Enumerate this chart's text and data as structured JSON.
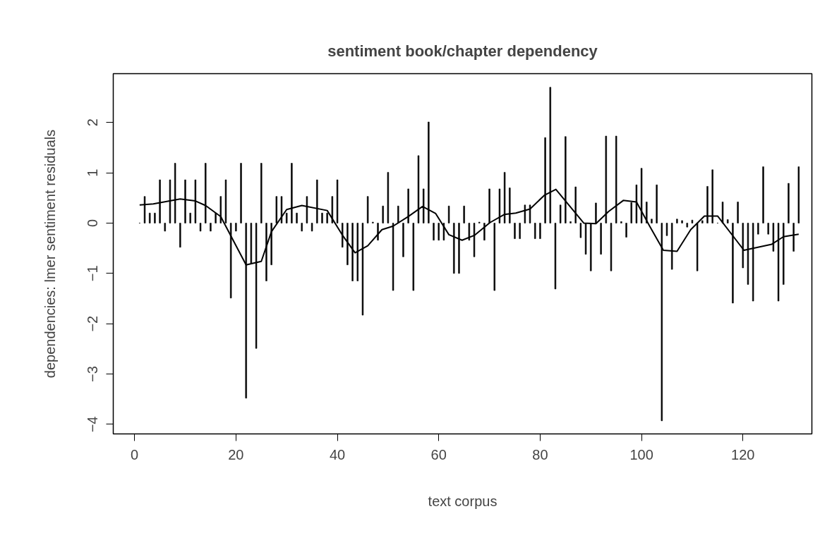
{
  "chart_data": {
    "type": "bar",
    "title": "sentiment book/chapter dependency",
    "xlabel": "text corpus",
    "ylabel": "dependencies: lmer sentiment residuals",
    "xlim": [
      -4.2,
      133.6
    ],
    "ylim": [
      -4.19,
      2.97
    ],
    "xticks": [
      0,
      20,
      40,
      60,
      80,
      100,
      120
    ],
    "yticks": [
      -4,
      -3,
      -2,
      -1,
      0,
      1,
      2
    ],
    "grid": false,
    "series": [
      {
        "color": "#000000",
        "x": [
          1,
          2,
          3,
          4,
          5,
          6,
          7,
          8,
          9,
          10,
          11,
          12,
          13,
          14,
          15,
          16,
          17,
          18,
          19,
          20,
          21,
          22,
          23,
          24,
          25,
          26,
          27,
          28,
          29,
          30,
          31,
          32,
          33,
          34,
          35,
          36,
          37,
          38,
          39,
          40,
          41,
          42,
          43,
          44,
          45,
          46,
          47,
          48,
          49,
          50,
          51,
          52,
          53,
          54,
          55,
          56,
          57,
          58,
          59,
          60,
          61,
          62,
          63,
          64,
          65,
          66,
          67,
          68,
          69,
          70,
          71,
          72,
          73,
          74,
          75,
          76,
          77,
          78,
          79,
          80,
          81,
          82,
          83,
          84,
          85,
          86,
          87,
          88,
          89,
          90,
          91,
          92,
          93,
          94,
          95,
          96,
          97,
          98,
          99,
          100,
          101,
          102,
          103,
          104,
          105,
          106,
          107,
          108,
          109,
          110,
          111,
          112,
          113,
          114,
          115,
          116,
          117,
          118,
          119,
          120,
          121,
          122,
          123,
          124,
          125,
          126,
          127,
          128,
          129,
          130,
          131
        ],
        "values": [
          0.0,
          0.53,
          0.2,
          0.2,
          0.86,
          -0.16,
          0.86,
          1.19,
          -0.48,
          0.86,
          0.2,
          0.86,
          -0.16,
          1.19,
          -0.16,
          0.2,
          0.53,
          0.86,
          -1.49,
          -0.16,
          1.19,
          -3.48,
          -0.8,
          -2.49,
          1.19,
          -1.15,
          -0.83,
          0.53,
          0.53,
          0.2,
          1.19,
          0.2,
          -0.16,
          0.53,
          -0.16,
          0.86,
          0.2,
          0.2,
          0.53,
          0.86,
          -0.48,
          -0.83,
          -1.15,
          -1.15,
          -1.83,
          0.53,
          0.02,
          -0.34,
          0.34,
          1.01,
          -1.34,
          0.34,
          -0.67,
          0.68,
          -1.34,
          1.34,
          0.68,
          2.01,
          -0.34,
          -0.34,
          -0.34,
          0.34,
          -1.0,
          -1.0,
          0.34,
          -0.34,
          -0.67,
          0.02,
          -0.34,
          0.68,
          -1.34,
          0.68,
          1.01,
          0.7,
          -0.31,
          -0.31,
          0.36,
          0.36,
          -0.31,
          -0.31,
          1.7,
          2.7,
          -1.31,
          0.36,
          1.72,
          0.03,
          0.72,
          -0.29,
          -0.62,
          -0.95,
          0.4,
          -0.62,
          1.73,
          -0.95,
          1.73,
          0.03,
          -0.28,
          0.41,
          0.76,
          1.09,
          0.42,
          0.08,
          0.76,
          -3.93,
          -0.25,
          -0.92,
          0.08,
          0.05,
          -0.08,
          0.06,
          -0.95,
          0.05,
          0.73,
          1.06,
          0.0,
          0.42,
          0.07,
          -1.59,
          0.42,
          -0.89,
          -1.22,
          -1.55,
          -0.22,
          1.12,
          -0.22,
          -0.56,
          -1.55,
          -1.22,
          0.79,
          -0.56,
          1.12
        ]
      },
      {
        "type": "line",
        "color": "#000000",
        "x": [
          1,
          3.7,
          9,
          12,
          14,
          17,
          22,
          25,
          27,
          30,
          33,
          38,
          41,
          43.5,
          46,
          48.8,
          51,
          54,
          56.8,
          59.4,
          62,
          64.6,
          67.1,
          70.1,
          72.9,
          75.2,
          78,
          80.8,
          83.1,
          88.6,
          91,
          93.5,
          96.4,
          99,
          101.6,
          104.3,
          107,
          109.7,
          112.4,
          115,
          120.2,
          125.7,
          128,
          131
        ],
        "values": [
          0.36,
          0.38,
          0.48,
          0.44,
          0.35,
          0.13,
          -0.83,
          -0.76,
          -0.17,
          0.27,
          0.35,
          0.25,
          -0.24,
          -0.59,
          -0.45,
          -0.13,
          -0.06,
          0.13,
          0.33,
          0.19,
          -0.23,
          -0.34,
          -0.24,
          0.01,
          0.17,
          0.2,
          0.28,
          0.55,
          0.67,
          0.0,
          -0.01,
          0.23,
          0.45,
          0.42,
          -0.06,
          -0.54,
          -0.56,
          -0.13,
          0.14,
          0.14,
          -0.54,
          -0.42,
          -0.27,
          -0.22
        ]
      }
    ]
  }
}
